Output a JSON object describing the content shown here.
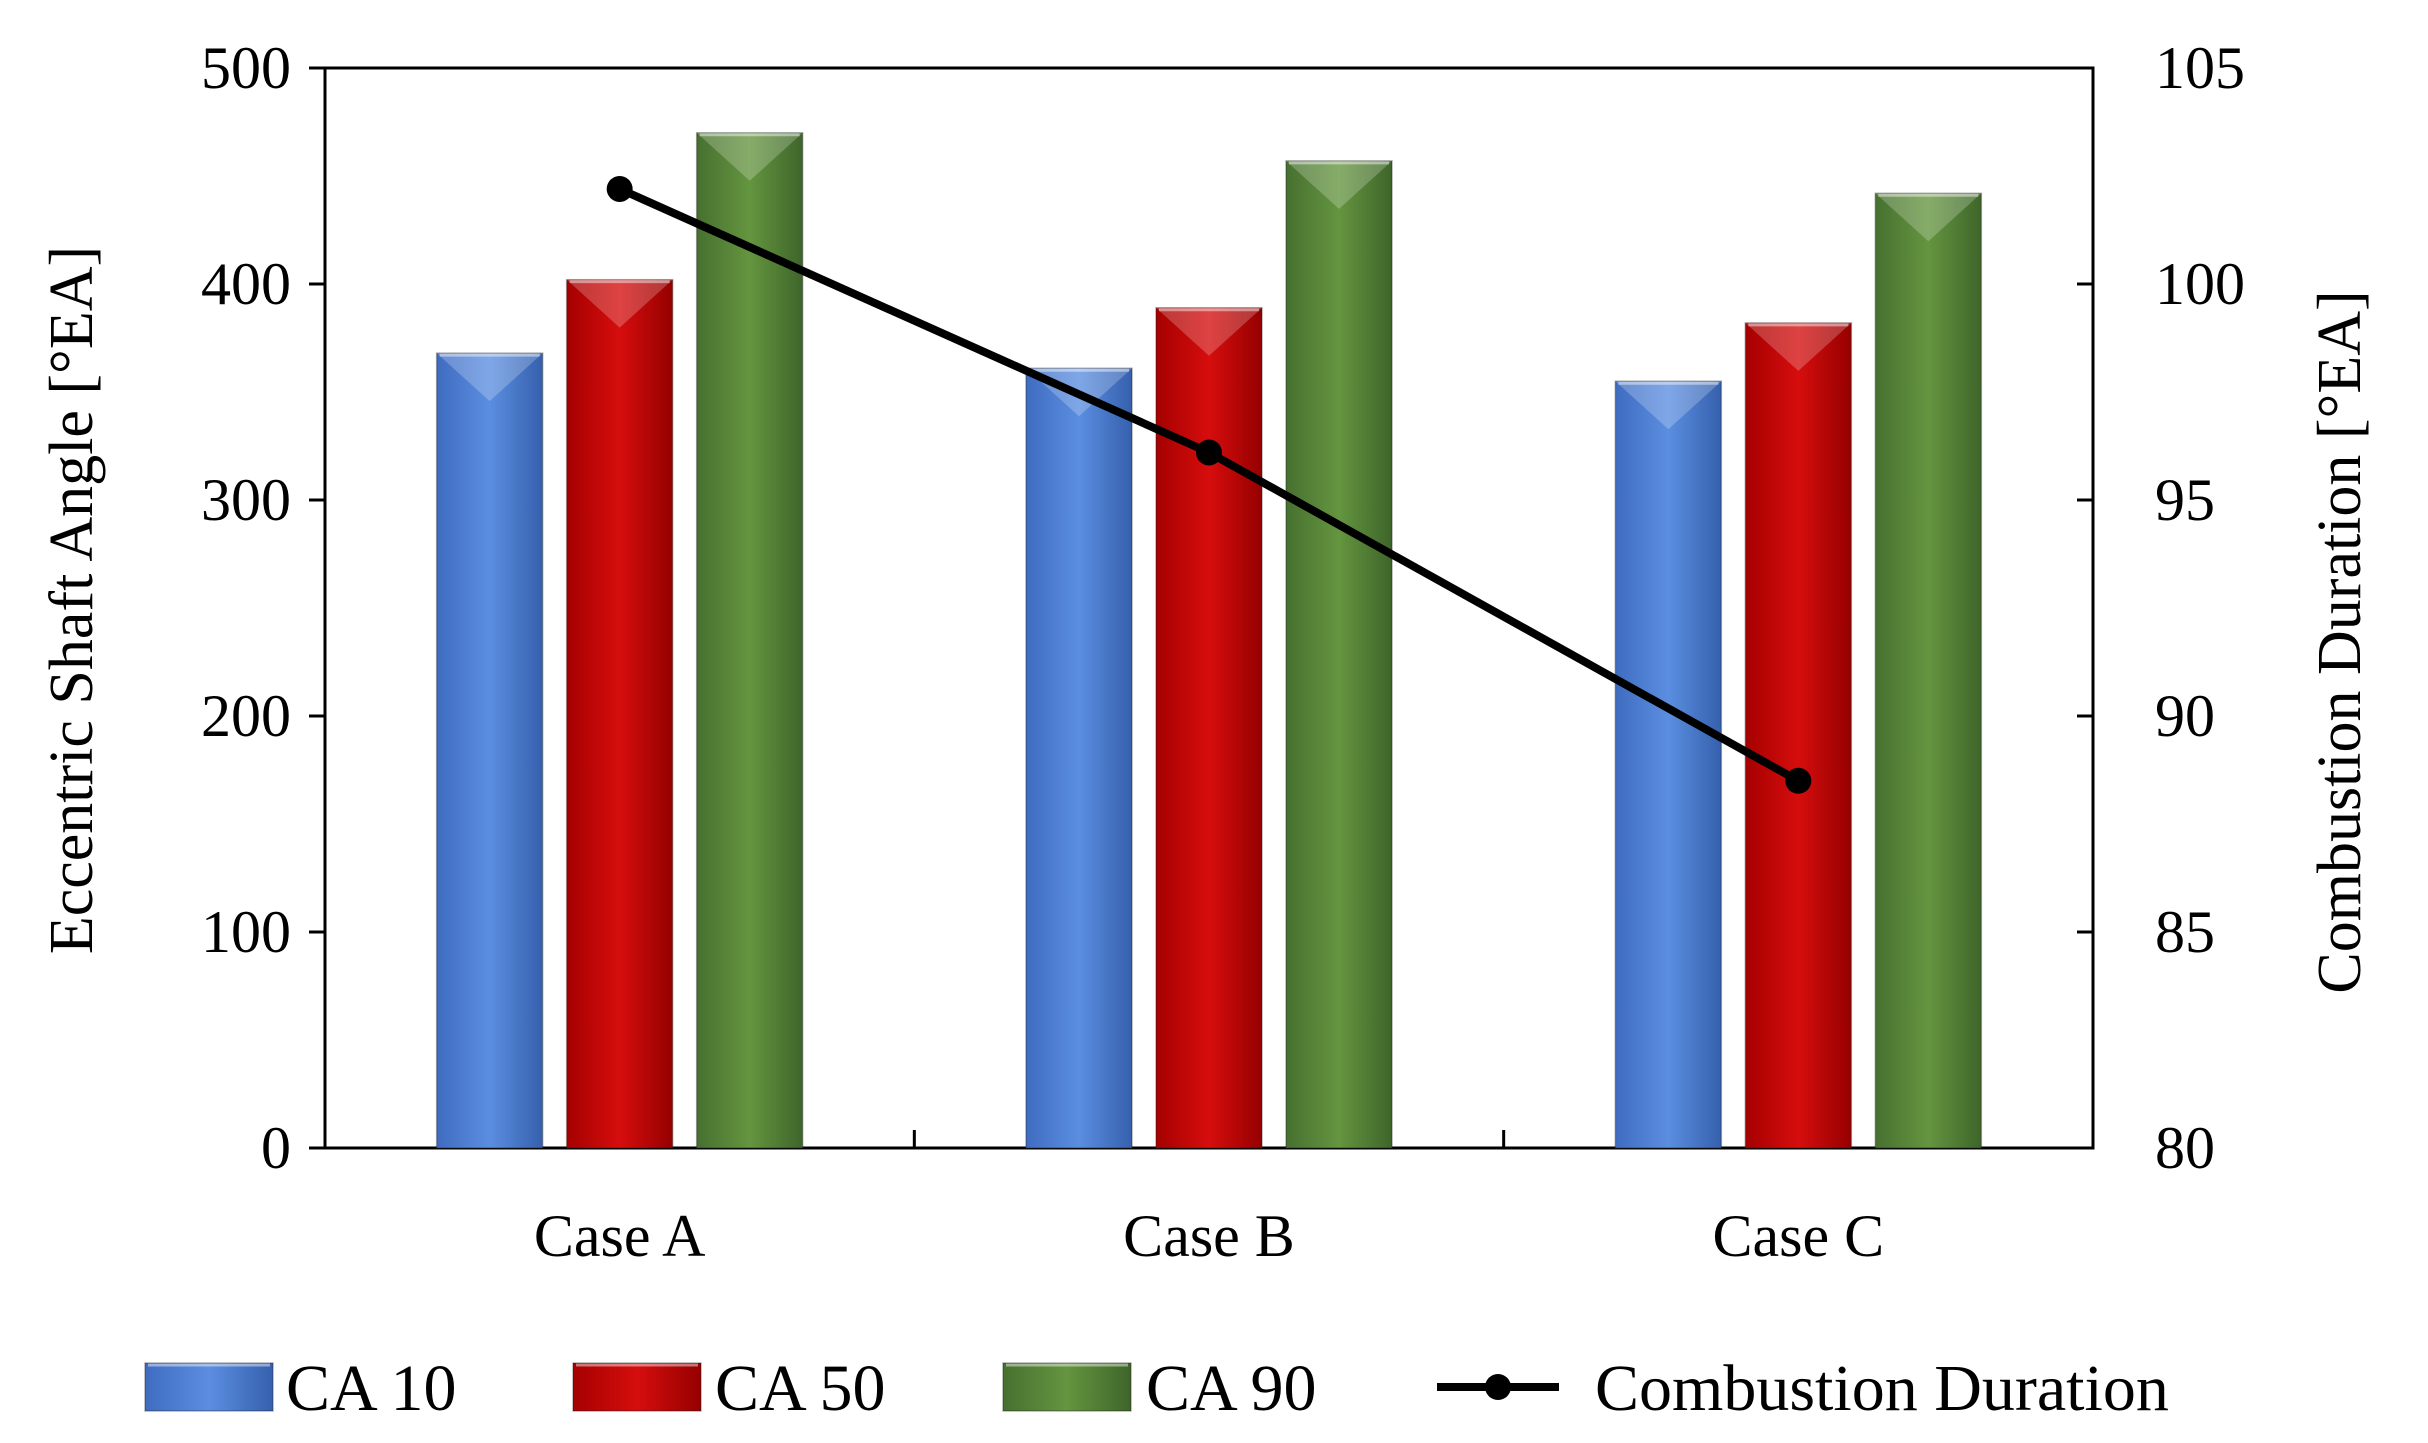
{
  "chart_data": {
    "type": "bar",
    "categories": [
      "Case A",
      "Case B",
      "Case C"
    ],
    "series": [
      {
        "name": "CA 10",
        "axis": "left",
        "kind": "bar",
        "color": "#4472C4",
        "values": [
          368,
          361,
          355
        ]
      },
      {
        "name": "CA 50",
        "axis": "left",
        "kind": "bar",
        "color": "#C00000",
        "values": [
          402,
          389,
          382
        ]
      },
      {
        "name": "CA 90",
        "axis": "left",
        "kind": "bar",
        "color": "#548235",
        "values": [
          470,
          457,
          442
        ]
      },
      {
        "name": "Combustion Duration",
        "axis": "right",
        "kind": "line",
        "color": "#000000",
        "values": [
          102.2,
          96.1,
          88.5
        ]
      }
    ],
    "ylabel": "Eccentric Shaft Angle [°EA]",
    "ylabel_right": "Combustion Duration [°EA]",
    "ylim": [
      0,
      500
    ],
    "ylim_right": [
      80,
      105
    ],
    "yticks": [
      "0",
      "100",
      "200",
      "300",
      "400",
      "500"
    ],
    "yticks_right": [
      "80",
      "85",
      "90",
      "95",
      "100",
      "105"
    ],
    "legend_position": "bottom"
  }
}
